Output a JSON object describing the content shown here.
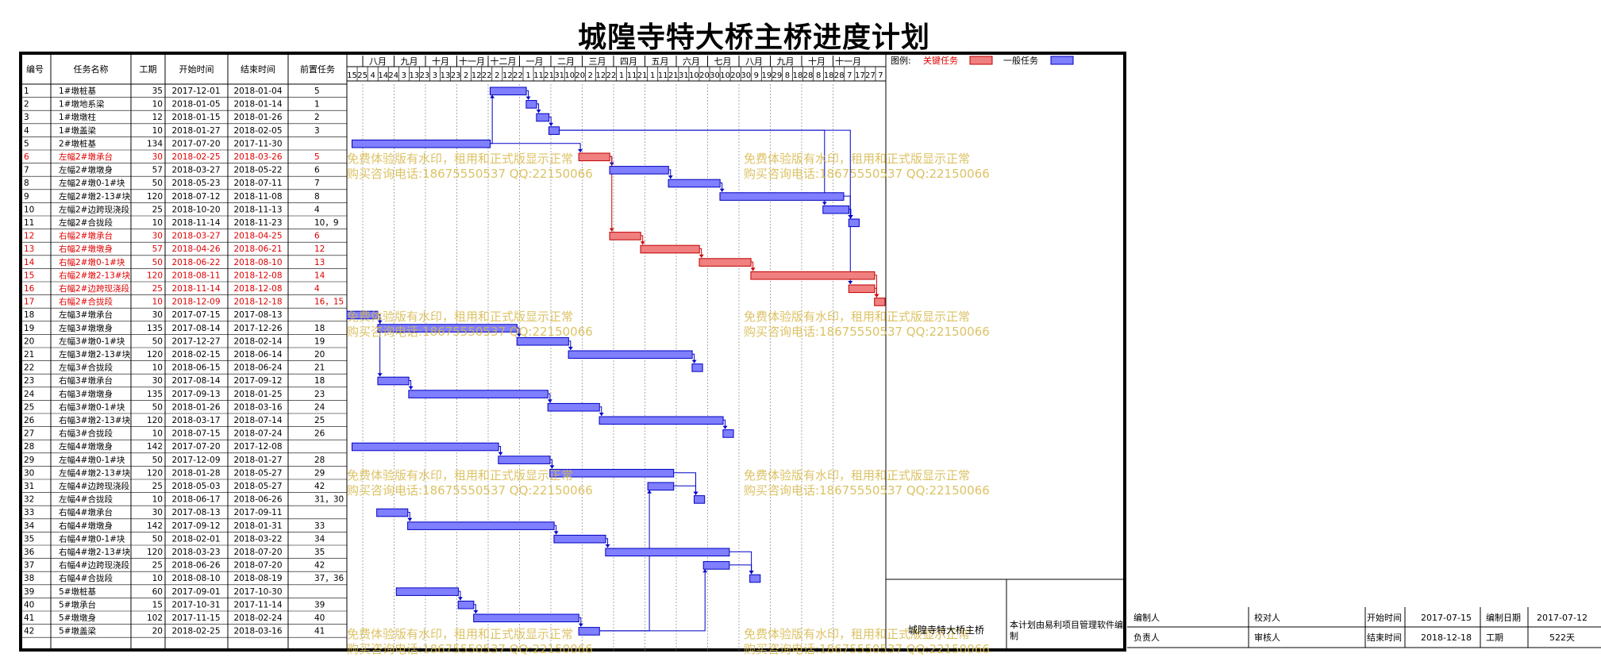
{
  "title": "城隍寺特大桥主桥进度计划",
  "table_headers": [
    "编号",
    "任务名称",
    "工期",
    "开始时间",
    "结束时间",
    "前置任务"
  ],
  "legend": {
    "label": "图例:",
    "critical": "关键任务",
    "normal": "一般任务",
    "critical_color": "#f08080",
    "normal_color": "#7f7fff"
  },
  "timescale": {
    "months": [
      "八月",
      "九月",
      "十月",
      "十一月",
      "十二月",
      "一月",
      "二月",
      "三月",
      "四月",
      "五月",
      "六月",
      "七月",
      "八月",
      "九月",
      "十月",
      "十一月"
    ],
    "days": [
      "15",
      "25",
      "4",
      "14",
      "24",
      "3",
      "13",
      "23",
      "3",
      "13",
      "23",
      "2",
      "12",
      "22",
      "2",
      "12",
      "22",
      "1",
      "11",
      "21",
      "31",
      "10",
      "20",
      "2",
      "12",
      "22",
      "1",
      "11",
      "21",
      "1",
      "11",
      "21",
      "31",
      "10",
      "20",
      "30",
      "10",
      "20",
      "30",
      "9",
      "19",
      "29",
      "8",
      "18",
      "28",
      "8",
      "18",
      "28",
      "7",
      "17",
      "27",
      "7"
    ]
  },
  "watermark": {
    "line1": "免费体验版有水印，租用和正式版显示正常",
    "line2": "购买咨询电话:18675550537 QQ:22150066"
  },
  "footer": {
    "project_name": "城隍寺特大桥主桥",
    "software_note": "本计划由易利项目管理软件编制",
    "fields": [
      {
        "label": "编制人",
        "value": ""
      },
      {
        "label": "校对人",
        "value": ""
      },
      {
        "label": "开始时间",
        "value": "2017-07-15"
      },
      {
        "label": "编制日期",
        "value": "2017-07-12"
      },
      {
        "label": "负责人",
        "value": ""
      },
      {
        "label": "审核人",
        "value": ""
      },
      {
        "label": "结束时间",
        "value": "2018-12-18"
      },
      {
        "label": "工期",
        "value": "522天"
      }
    ]
  },
  "chart_data": {
    "type": "gantt",
    "title": "城隍寺特大桥主桥进度计划",
    "x_range": [
      "2017-07-15",
      "2018-12-20"
    ],
    "tasks": [
      {
        "id": "1",
        "name": "1#墩桩基",
        "dur": "35",
        "start": "2017-12-01",
        "end": "2018-01-04",
        "pred": "5",
        "critical": false
      },
      {
        "id": "2",
        "name": "1#墩地系梁",
        "dur": "10",
        "start": "2018-01-05",
        "end": "2018-01-14",
        "pred": "1",
        "critical": false
      },
      {
        "id": "3",
        "name": "1#墩墩柱",
        "dur": "12",
        "start": "2018-01-15",
        "end": "2018-01-26",
        "pred": "2",
        "critical": false
      },
      {
        "id": "4",
        "name": "1#墩盖梁",
        "dur": "10",
        "start": "2018-01-27",
        "end": "2018-02-05",
        "pred": "3",
        "critical": false
      },
      {
        "id": "5",
        "name": "2#墩桩基",
        "dur": "134",
        "start": "2017-07-20",
        "end": "2017-11-30",
        "pred": "",
        "critical": false
      },
      {
        "id": "6",
        "name": "左幅2#墩承台",
        "dur": "30",
        "start": "2018-02-25",
        "end": "2018-03-26",
        "pred": "5",
        "critical": true
      },
      {
        "id": "7",
        "name": "左幅2#墩墩身",
        "dur": "57",
        "start": "2018-03-27",
        "end": "2018-05-22",
        "pred": "6",
        "critical": false
      },
      {
        "id": "8",
        "name": "左幅2#墩0-1#块",
        "dur": "50",
        "start": "2018-05-23",
        "end": "2018-07-11",
        "pred": "7",
        "critical": false
      },
      {
        "id": "9",
        "name": "左幅2#墩2-13#块",
        "dur": "120",
        "start": "2018-07-12",
        "end": "2018-11-08",
        "pred": "8",
        "critical": false
      },
      {
        "id": "10",
        "name": "左幅2#边跨现浇段",
        "dur": "25",
        "start": "2018-10-20",
        "end": "2018-11-13",
        "pred": "4",
        "critical": false
      },
      {
        "id": "11",
        "name": "左幅2#合拢段",
        "dur": "10",
        "start": "2018-11-14",
        "end": "2018-11-23",
        "pred": "10，9",
        "critical": false
      },
      {
        "id": "12",
        "name": "右幅2#墩承台",
        "dur": "30",
        "start": "2018-03-27",
        "end": "2018-04-25",
        "pred": "6",
        "critical": true
      },
      {
        "id": "13",
        "name": "右幅2#墩墩身",
        "dur": "57",
        "start": "2018-04-26",
        "end": "2018-06-21",
        "pred": "12",
        "critical": true
      },
      {
        "id": "14",
        "name": "右幅2#墩0-1#块",
        "dur": "50",
        "start": "2018-06-22",
        "end": "2018-08-10",
        "pred": "13",
        "critical": true
      },
      {
        "id": "15",
        "name": "右幅2#墩2-13#块",
        "dur": "120",
        "start": "2018-08-11",
        "end": "2018-12-08",
        "pred": "14",
        "critical": true
      },
      {
        "id": "16",
        "name": "右幅2#边跨现浇段",
        "dur": "25",
        "start": "2018-11-14",
        "end": "2018-12-08",
        "pred": "4",
        "critical": true
      },
      {
        "id": "17",
        "name": "右幅2#合拢段",
        "dur": "10",
        "start": "2018-12-09",
        "end": "2018-12-18",
        "pred": "16，15",
        "critical": true
      },
      {
        "id": "18",
        "name": "左幅3#墩承台",
        "dur": "30",
        "start": "2017-07-15",
        "end": "2017-08-13",
        "pred": "",
        "critical": false
      },
      {
        "id": "19",
        "name": "左幅3#墩墩身",
        "dur": "135",
        "start": "2017-08-14",
        "end": "2017-12-26",
        "pred": "18",
        "critical": false
      },
      {
        "id": "20",
        "name": "左幅3#墩0-1#块",
        "dur": "50",
        "start": "2017-12-27",
        "end": "2018-02-14",
        "pred": "19",
        "critical": false
      },
      {
        "id": "21",
        "name": "左幅3#墩2-13#块",
        "dur": "120",
        "start": "2018-02-15",
        "end": "2018-06-14",
        "pred": "20",
        "critical": false
      },
      {
        "id": "22",
        "name": "左幅3#合拢段",
        "dur": "10",
        "start": "2018-06-15",
        "end": "2018-06-24",
        "pred": "21",
        "critical": false
      },
      {
        "id": "23",
        "name": "右幅3#墩承台",
        "dur": "30",
        "start": "2017-08-14",
        "end": "2017-09-12",
        "pred": "18",
        "critical": false
      },
      {
        "id": "24",
        "name": "右幅3#墩墩身",
        "dur": "135",
        "start": "2017-09-13",
        "end": "2018-01-25",
        "pred": "23",
        "critical": false
      },
      {
        "id": "25",
        "name": "右幅3#墩0-1#块",
        "dur": "50",
        "start": "2018-01-26",
        "end": "2018-03-16",
        "pred": "24",
        "critical": false
      },
      {
        "id": "26",
        "name": "右幅3#墩2-13#块",
        "dur": "120",
        "start": "2018-03-17",
        "end": "2018-07-14",
        "pred": "25",
        "critical": false
      },
      {
        "id": "27",
        "name": "右幅3#合拢段",
        "dur": "10",
        "start": "2018-07-15",
        "end": "2018-07-24",
        "pred": "26",
        "critical": false
      },
      {
        "id": "28",
        "name": "左幅4#墩墩身",
        "dur": "142",
        "start": "2017-07-20",
        "end": "2017-12-08",
        "pred": "",
        "critical": false
      },
      {
        "id": "29",
        "name": "左幅4#墩0-1#块",
        "dur": "50",
        "start": "2017-12-09",
        "end": "2018-01-27",
        "pred": "28",
        "critical": false
      },
      {
        "id": "30",
        "name": "左幅4#墩2-13#块",
        "dur": "120",
        "start": "2018-01-28",
        "end": "2018-05-27",
        "pred": "29",
        "critical": false
      },
      {
        "id": "31",
        "name": "左幅4#边跨现浇段",
        "dur": "25",
        "start": "2018-05-03",
        "end": "2018-05-27",
        "pred": "42",
        "critical": false
      },
      {
        "id": "32",
        "name": "左幅4#合拢段",
        "dur": "10",
        "start": "2018-06-17",
        "end": "2018-06-26",
        "pred": "31，30",
        "critical": false
      },
      {
        "id": "33",
        "name": "右幅4#墩承台",
        "dur": "30",
        "start": "2017-08-13",
        "end": "2017-09-11",
        "pred": "",
        "critical": false
      },
      {
        "id": "34",
        "name": "右幅4#墩墩身",
        "dur": "142",
        "start": "2017-09-12",
        "end": "2018-01-31",
        "pred": "33",
        "critical": false
      },
      {
        "id": "35",
        "name": "右幅4#墩0-1#块",
        "dur": "50",
        "start": "2018-02-01",
        "end": "2018-03-22",
        "pred": "34",
        "critical": false
      },
      {
        "id": "36",
        "name": "右幅4#墩2-13#块",
        "dur": "120",
        "start": "2018-03-23",
        "end": "2018-07-20",
        "pred": "35",
        "critical": false
      },
      {
        "id": "37",
        "name": "右幅4#边跨现浇段",
        "dur": "25",
        "start": "2018-06-26",
        "end": "2018-07-20",
        "pred": "42",
        "critical": false
      },
      {
        "id": "38",
        "name": "右幅4#合拢段",
        "dur": "10",
        "start": "2018-08-10",
        "end": "2018-08-19",
        "pred": "37，36",
        "critical": false
      },
      {
        "id": "39",
        "name": "5#墩桩基",
        "dur": "60",
        "start": "2017-09-01",
        "end": "2017-10-30",
        "pred": "",
        "critical": false
      },
      {
        "id": "40",
        "name": "5#墩承台",
        "dur": "15",
        "start": "2017-10-31",
        "end": "2017-11-14",
        "pred": "39",
        "critical": false
      },
      {
        "id": "41",
        "name": "5#墩墩身",
        "dur": "102",
        "start": "2017-11-15",
        "end": "2018-02-24",
        "pred": "40",
        "critical": false
      },
      {
        "id": "42",
        "name": "5#墩盖梁",
        "dur": "20",
        "start": "2018-02-25",
        "end": "2018-03-16",
        "pred": "41",
        "critical": false
      }
    ]
  }
}
